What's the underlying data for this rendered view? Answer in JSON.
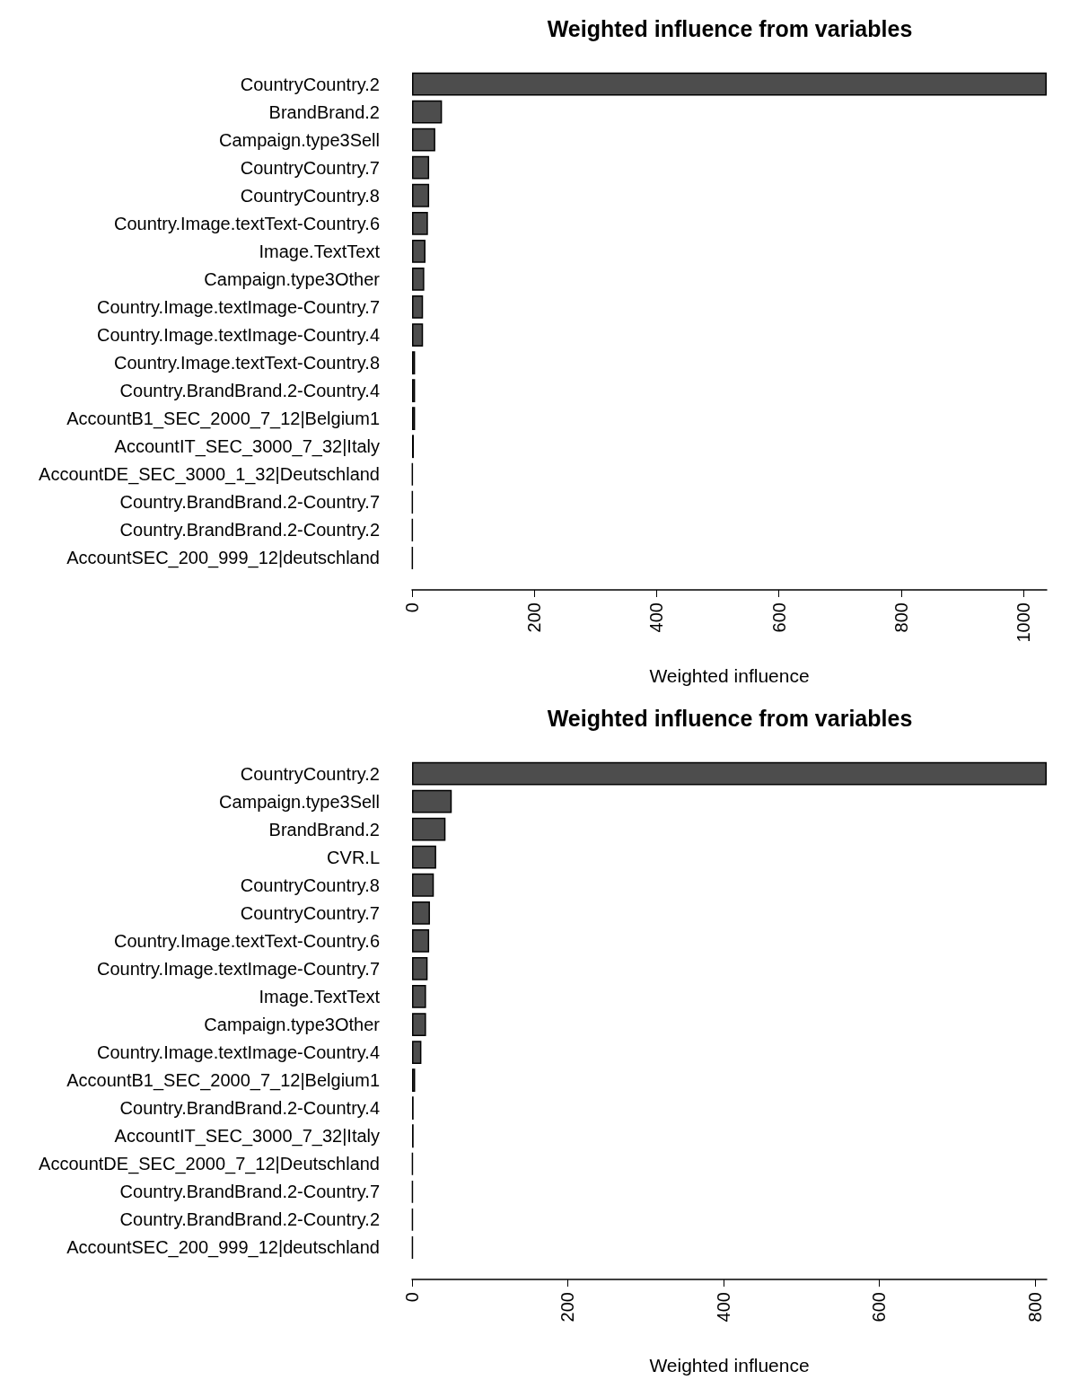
{
  "chart_data": [
    {
      "type": "bar",
      "orientation": "horizontal",
      "title": "Weighted influence from variables",
      "xlabel": "Weighted influence",
      "categories": [
        "CountryCountry.2",
        "BrandBrand.2",
        "Campaign.type3Sell",
        "CountryCountry.7",
        "CountryCountry.8",
        "Country.Image.textText-Country.6",
        "Image.TextText",
        "Campaign.type3Other",
        "Country.Image.textImage-Country.7",
        "Country.Image.textImage-Country.4",
        "Country.Image.textText-Country.8",
        "Country.BrandBrand.2-Country.4",
        "AccountB1_SEC_2000_7_12|Belgium1",
        "AccountIT_SEC_3000_7_32|Italy",
        "AccountDE_SEC_3000_1_32|Deutschland",
        "Country.BrandBrand.2-Country.7",
        "Country.BrandBrand.2-Country.2",
        "AccountSEC_200_999_12|deutschland"
      ],
      "values": [
        1038,
        49,
        38,
        28,
        28,
        26,
        22,
        20,
        18,
        18,
        5,
        5,
        5,
        3,
        1,
        1,
        1,
        1
      ],
      "colors": [
        "#4d4d4d",
        "#4d4d4d",
        "#4d4d4d",
        "#4d4d4d",
        "#4d4d4d",
        "#4d4d4d",
        "#4d4d4d",
        "#4d4d4d",
        "#4d4d4d",
        "#4d4d4d",
        "#4d4d4d",
        "#4d4d4d",
        "#4d4d4d",
        "#4d4d4d",
        "#000000",
        "#000000",
        "#000000",
        "#000000"
      ],
      "xlim": [
        0,
        1038
      ],
      "xticks": [
        0,
        200,
        400,
        600,
        800,
        1000
      ],
      "grid": false
    },
    {
      "type": "bar",
      "orientation": "horizontal",
      "title": "Weighted influence from variables",
      "xlabel": "Weighted influence",
      "categories": [
        "CountryCountry.2",
        "Campaign.type3Sell",
        "BrandBrand.2",
        "CVR.L",
        "CountryCountry.8",
        "CountryCountry.7",
        "Country.Image.textText-Country.6",
        "Country.Image.textImage-Country.7",
        "Image.TextText",
        "Campaign.type3Other",
        "Country.Image.textImage-Country.4",
        "AccountB1_SEC_2000_7_12|Belgium1",
        "Country.BrandBrand.2-Country.4",
        "AccountIT_SEC_3000_7_32|Italy",
        "AccountDE_SEC_2000_7_12|Deutschland",
        "Country.BrandBrand.2-Country.7",
        "Country.BrandBrand.2-Country.2",
        "AccountSEC_200_999_12|deutschland"
      ],
      "values": [
        815,
        51,
        43,
        31,
        28,
        23,
        22,
        20,
        18,
        18,
        12,
        4,
        2,
        2,
        1,
        1,
        1,
        1
      ],
      "colors": [
        "#4d4d4d",
        "#4d4d4d",
        "#4d4d4d",
        "#4d4d4d",
        "#4d4d4d",
        "#4d4d4d",
        "#4d4d4d",
        "#4d4d4d",
        "#4d4d4d",
        "#4d4d4d",
        "#4d4d4d",
        "#4d4d4d",
        "#4d4d4d",
        "#4d4d4d",
        "#000000",
        "#000000",
        "#000000",
        "#000000"
      ],
      "xlim": [
        0,
        815
      ],
      "xticks": [
        0,
        200,
        400,
        600,
        800
      ],
      "grid": false
    }
  ]
}
